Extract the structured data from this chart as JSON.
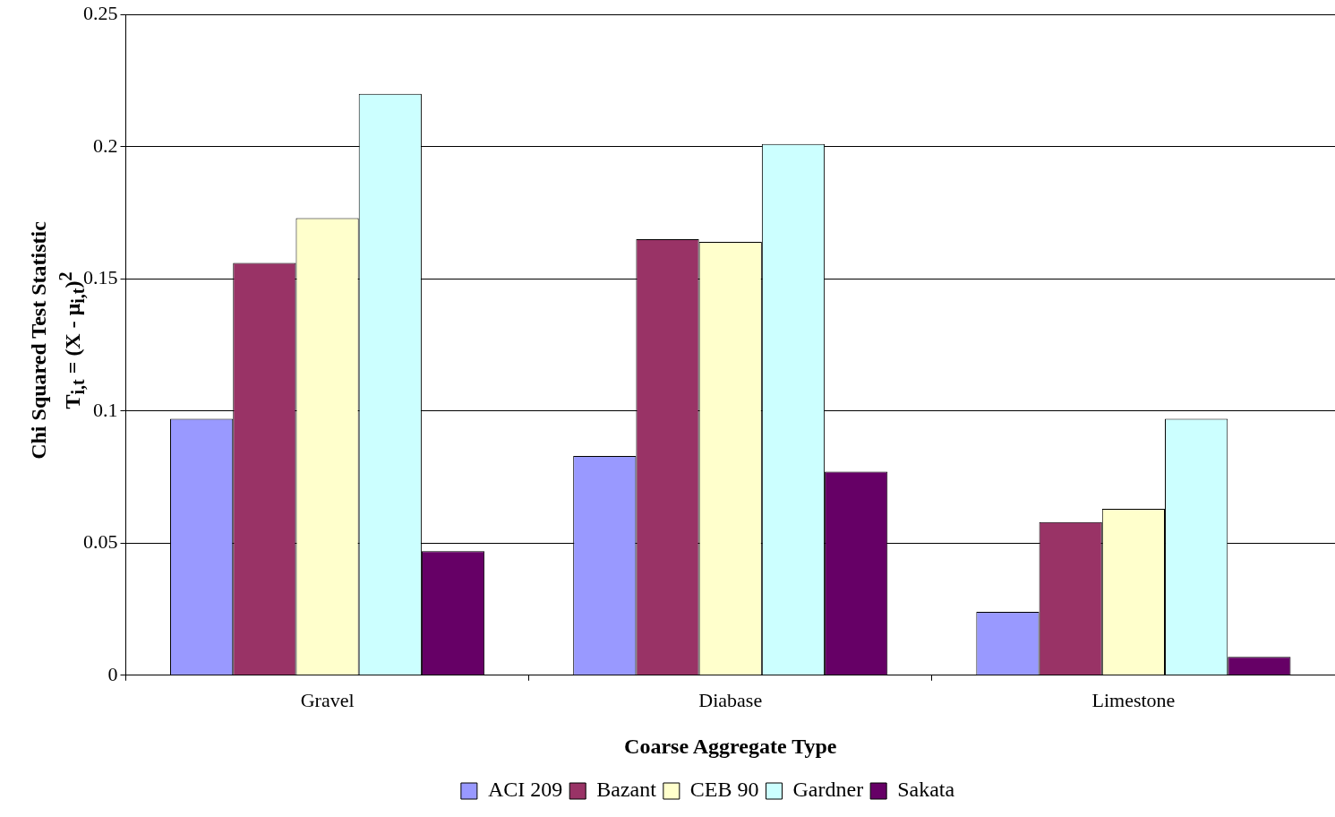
{
  "chart_data": {
    "type": "bar",
    "xlabel": "Coarse Aggregate Type",
    "ylabel": "Chi Squared Test Statistic\nT$_{i,t}$ = (X - μ$_{i,t}$)$^{2}$",
    "categories": [
      "Gravel",
      "Diabase",
      "Limestone"
    ],
    "series": [
      {
        "name": "ACI 209",
        "color": "#9999ff",
        "values": [
          0.097,
          0.083,
          0.024
        ]
      },
      {
        "name": "Bazant",
        "color": "#993366",
        "values": [
          0.156,
          0.165,
          0.058
        ]
      },
      {
        "name": "CEB 90",
        "color": "#ffffcc",
        "values": [
          0.173,
          0.164,
          0.063
        ]
      },
      {
        "name": "Gardner",
        "color": "#ccffff",
        "values": [
          0.22,
          0.201,
          0.097
        ]
      },
      {
        "name": "Sakata",
        "color": "#660066",
        "values": [
          0.047,
          0.077,
          0.007
        ]
      }
    ],
    "ylim": [
      0,
      0.25
    ],
    "yticks": [
      0,
      0.05,
      0.1,
      0.15,
      0.2,
      0.25
    ],
    "grid": "y",
    "legend": "bottom"
  }
}
